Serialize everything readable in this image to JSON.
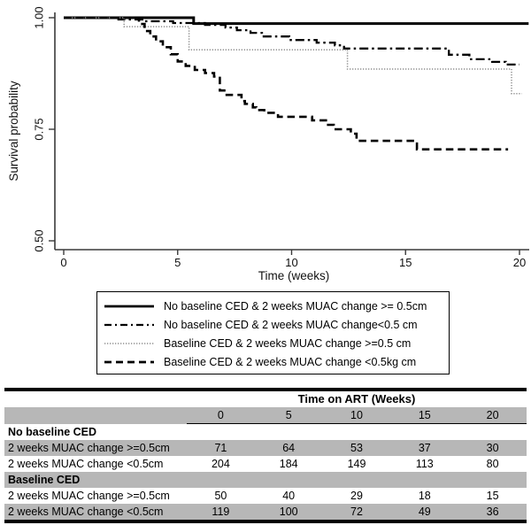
{
  "chart_data": {
    "type": "line",
    "subtype": "kaplan-meier-step",
    "title": "",
    "xlabel": "Time (weeks)",
    "ylabel": "Survival probability",
    "xlim": [
      0,
      20.4
    ],
    "ylim": [
      0.48,
      1.0
    ],
    "grid": false,
    "legend_position": "below",
    "xticks": [
      {
        "value": 0,
        "label": "0"
      },
      {
        "value": 5,
        "label": "5"
      },
      {
        "value": 10,
        "label": "10"
      },
      {
        "value": 15,
        "label": "15"
      },
      {
        "value": 20,
        "label": "20"
      }
    ],
    "yticks": [
      {
        "value": 1.0,
        "label": "1.00"
      },
      {
        "value": 0.75,
        "label": "0.75"
      },
      {
        "value": 0.5,
        "label": "0.50"
      }
    ],
    "series": [
      {
        "name": "No baseline CED & 2 weeks MUAC change >= 0.5cm",
        "line_style": "solid",
        "color": "#000000",
        "points": [
          [
            0,
            1.0
          ],
          [
            5.7,
            0.987
          ],
          [
            20.4,
            0.987
          ]
        ]
      },
      {
        "name": "No baseline CED & 2 weeks MUAC change<0.5 cm",
        "line_style": "dash-dot",
        "color": "#000000",
        "points": [
          [
            0,
            1.0
          ],
          [
            2.4,
            0.996
          ],
          [
            3.5,
            0.992
          ],
          [
            4.8,
            0.988
          ],
          [
            6.2,
            0.984
          ],
          [
            7.1,
            0.978
          ],
          [
            7.6,
            0.972
          ],
          [
            8.2,
            0.966
          ],
          [
            8.7,
            0.958
          ],
          [
            9.9,
            0.95
          ],
          [
            11.1,
            0.944
          ],
          [
            11.9,
            0.938
          ],
          [
            12.3,
            0.931
          ],
          [
            16.9,
            0.917
          ],
          [
            17.8,
            0.907
          ],
          [
            18.8,
            0.901
          ],
          [
            19.4,
            0.895
          ],
          [
            20.0,
            0.895
          ]
        ]
      },
      {
        "name": "Baseline CED & 2 weeks MUAC change >=0.5 cm",
        "line_style": "dotted",
        "color": "#8f8f8f",
        "points": [
          [
            0,
            1.0
          ],
          [
            2.65,
            0.98
          ],
          [
            5.5,
            0.928
          ],
          [
            12.45,
            0.885
          ],
          [
            19.65,
            0.83
          ],
          [
            20.1,
            0.83
          ]
        ]
      },
      {
        "name": "Baseline CED & 2 weeks MUAC change <0.5kg cm",
        "line_style": "dashed",
        "color": "#000000",
        "points": [
          [
            0,
            1.0
          ],
          [
            3.3,
            0.986
          ],
          [
            3.55,
            0.97
          ],
          [
            3.8,
            0.958
          ],
          [
            4.05,
            0.947
          ],
          [
            4.35,
            0.934
          ],
          [
            4.7,
            0.918
          ],
          [
            5.0,
            0.902
          ],
          [
            5.35,
            0.892
          ],
          [
            5.75,
            0.883
          ],
          [
            6.2,
            0.876
          ],
          [
            6.6,
            0.868
          ],
          [
            6.85,
            0.837
          ],
          [
            7.1,
            0.827
          ],
          [
            7.8,
            0.813
          ],
          [
            7.95,
            0.807
          ],
          [
            8.3,
            0.799
          ],
          [
            8.45,
            0.793
          ],
          [
            8.8,
            0.787
          ],
          [
            9.4,
            0.778
          ],
          [
            10.9,
            0.77
          ],
          [
            11.6,
            0.76
          ],
          [
            11.85,
            0.75
          ],
          [
            12.6,
            0.74
          ],
          [
            12.85,
            0.724
          ],
          [
            15.5,
            0.705
          ],
          [
            19.5,
            0.705
          ]
        ]
      }
    ]
  },
  "legend": {
    "entries": [
      {
        "label": "No baseline CED & 2 weeks MUAC change >= 0.5cm",
        "line_style": "solid"
      },
      {
        "label": "No baseline CED & 2 weeks MUAC change<0.5 cm",
        "line_style": "dash-dot"
      },
      {
        "label": "Baseline CED & 2 weeks MUAC change >=0.5 cm",
        "line_style": "dotted"
      },
      {
        "label": "Baseline CED & 2 weeks MUAC change <0.5kg cm",
        "line_style": "dashed"
      }
    ]
  },
  "risk_table": {
    "header": "Time on ART (Weeks)",
    "time_columns": [
      "0",
      "5",
      "10",
      "15",
      "20"
    ],
    "rows": [
      {
        "label": "No baseline CED",
        "group": true,
        "shaded": false,
        "values": []
      },
      {
        "label": "2 weeks MUAC change >=0.5cm",
        "group": false,
        "shaded": true,
        "values": [
          "71",
          "64",
          "53",
          "37",
          "30"
        ]
      },
      {
        "label": "2 weeks MUAC change <0.5cm",
        "group": false,
        "shaded": false,
        "values": [
          "204",
          "184",
          "149",
          "113",
          "80"
        ]
      },
      {
        "label": "Baseline CED",
        "group": true,
        "shaded": true,
        "values": []
      },
      {
        "label": "2 weeks MUAC change >=0.5cm",
        "group": false,
        "shaded": false,
        "values": [
          "50",
          "40",
          "29",
          "18",
          "15"
        ]
      },
      {
        "label": "2 weeks MUAC change <0.5cm",
        "group": false,
        "shaded": true,
        "values": [
          "119",
          "100",
          "72",
          "49",
          "36"
        ]
      }
    ],
    "shade_color": "#b7b7b7"
  },
  "colors": {
    "background": "#ffffff",
    "axis": "#3a3a3a",
    "text": "#000000",
    "dotted_line": "#8f8f8f",
    "table_shade": "#b7b7b7"
  }
}
